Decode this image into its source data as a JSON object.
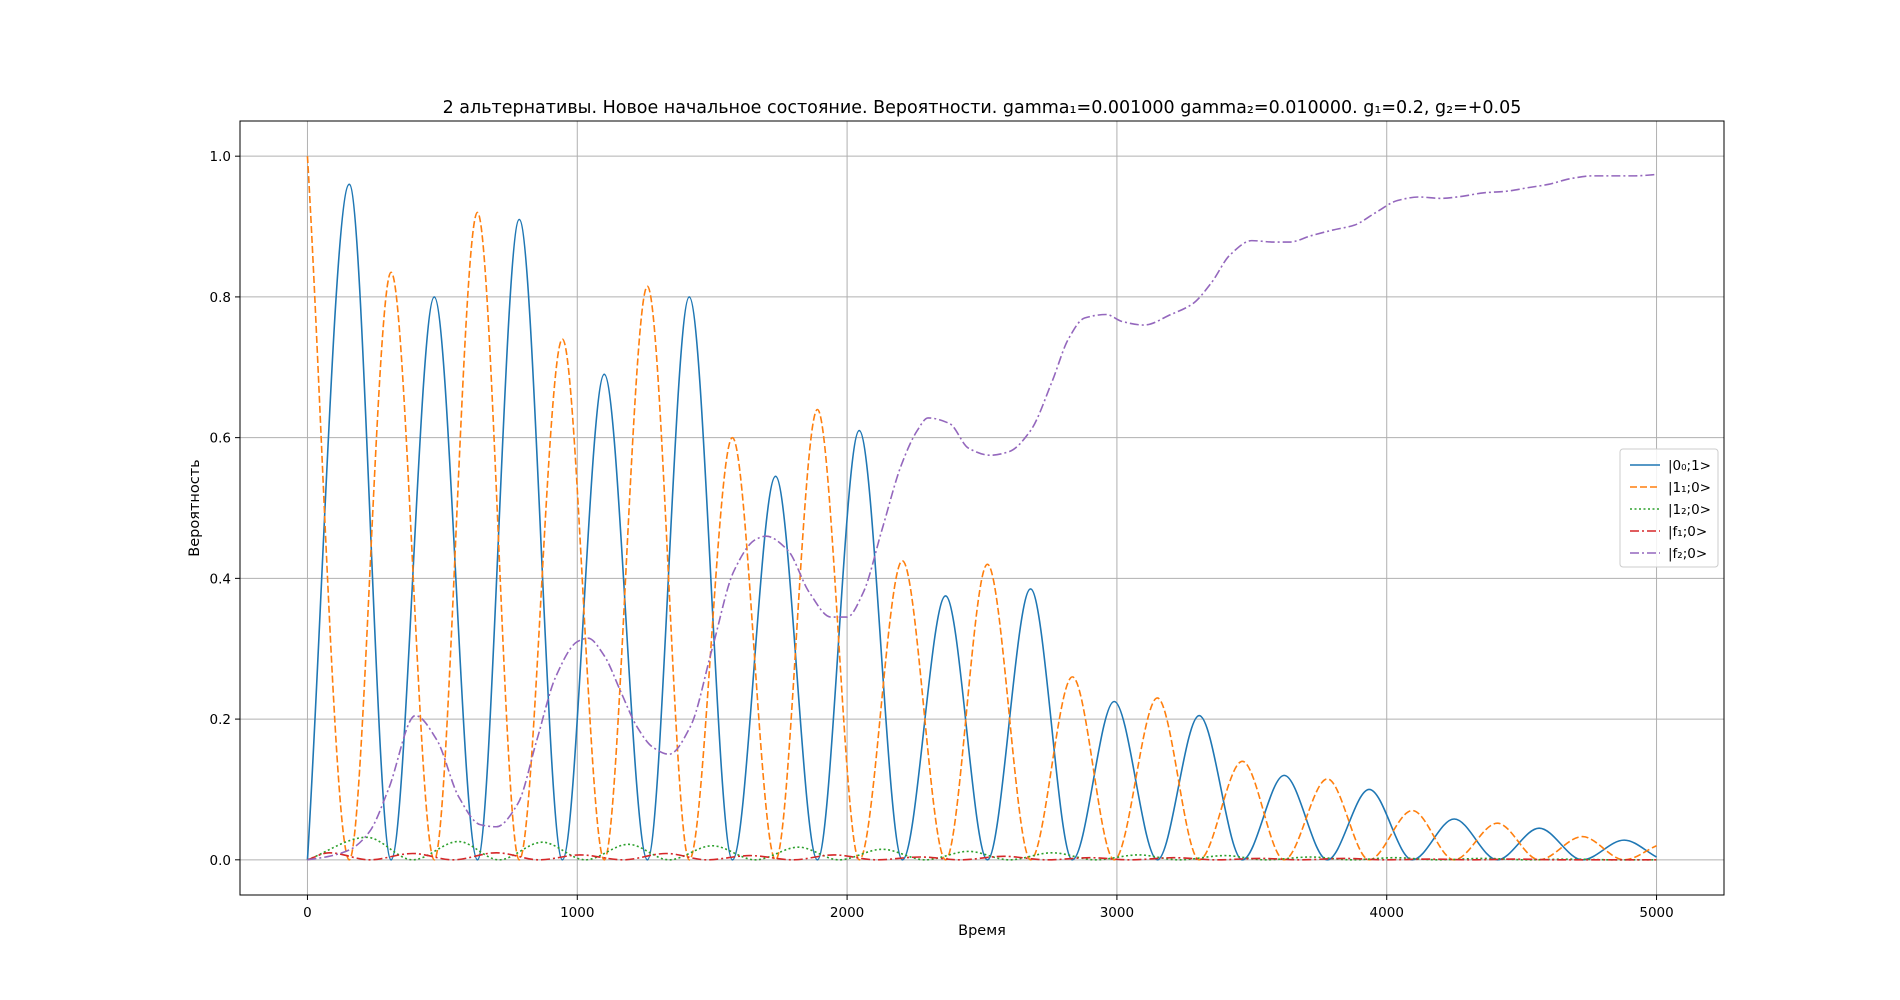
{
  "chart_data": {
    "type": "line",
    "title": "2 альтернативы. Новое начальное состояние. Вероятности.  gamma₁=0.001000 gamma₂=0.010000. g₁=0.2, g₂=+0.05",
    "xlabel": "Время",
    "ylabel": "Вероятность",
    "xlim": [
      -250,
      5250
    ],
    "ylim": [
      -0.05,
      1.05
    ],
    "xticks": [
      0,
      1000,
      2000,
      3000,
      4000,
      5000
    ],
    "xtick_labels": [
      "0",
      "1000",
      "2000",
      "3000",
      "4000",
      "5000"
    ],
    "yticks": [
      0.0,
      0.2,
      0.4,
      0.6,
      0.8,
      1.0
    ],
    "ytick_labels": [
      "0.0",
      "0.2",
      "0.4",
      "0.6",
      "0.8",
      "1.0"
    ],
    "grid": true,
    "legend_position": "center-right",
    "series": [
      {
        "name": "|0₀;1>",
        "color": "#1f77b4",
        "dash": "solid",
        "x": [
          0,
          155,
          310,
          470,
          630,
          785,
          945,
          1100,
          1260,
          1415,
          1575,
          1735,
          1890,
          2045,
          2205,
          2365,
          2520,
          2680,
          2835,
          2990,
          3150,
          3305,
          3465,
          3620,
          3780,
          3935,
          4095,
          4250,
          4410,
          4565,
          4725,
          4880,
          5000
        ],
        "y": [
          0.0,
          0.96,
          0.0,
          0.8,
          0.0,
          0.91,
          0.0,
          0.69,
          0.0,
          0.8,
          0.0,
          0.545,
          0.0,
          0.61,
          0.0,
          0.375,
          0.0,
          0.385,
          0.0,
          0.225,
          0.0,
          0.205,
          0.0,
          0.12,
          0.0,
          0.1,
          0.0,
          0.058,
          0.0,
          0.045,
          0.0,
          0.028,
          0.004
        ]
      },
      {
        "name": "|1₁;0>",
        "color": "#ff7f0e",
        "dash": "dashed",
        "x": [
          0,
          155,
          310,
          470,
          630,
          785,
          945,
          1100,
          1260,
          1415,
          1575,
          1735,
          1890,
          2045,
          2205,
          2365,
          2520,
          2680,
          2835,
          2990,
          3150,
          3305,
          3465,
          3620,
          3780,
          3935,
          4095,
          4250,
          4410,
          4565,
          4725,
          4880,
          5000
        ],
        "y": [
          1.0,
          0.0,
          0.835,
          0.0,
          0.92,
          0.0,
          0.74,
          0.0,
          0.815,
          0.0,
          0.6,
          0.0,
          0.64,
          0.0,
          0.425,
          0.0,
          0.42,
          0.0,
          0.26,
          0.0,
          0.23,
          0.0,
          0.14,
          0.0,
          0.115,
          0.0,
          0.07,
          0.0,
          0.052,
          0.0,
          0.033,
          0.0,
          0.02
        ]
      },
      {
        "name": "|1₂;0>",
        "color": "#2ca02c",
        "dash": "dotted",
        "x": [
          0,
          220,
          390,
          560,
          710,
          870,
          1030,
          1190,
          1340,
          1500,
          1660,
          1820,
          1970,
          2130,
          2290,
          2450,
          2600,
          2760,
          2920,
          3080,
          3230,
          3400,
          3550,
          3720,
          3870,
          4030,
          4190,
          4360,
          4520,
          4680,
          4840,
          5000
        ],
        "y": [
          0.0,
          0.032,
          0.0,
          0.026,
          0.0,
          0.025,
          0.0,
          0.022,
          0.0,
          0.02,
          0.0,
          0.018,
          0.0,
          0.015,
          0.0,
          0.012,
          0.0,
          0.01,
          0.0,
          0.007,
          0.0,
          0.006,
          0.0,
          0.004,
          0.0,
          0.003,
          0.0,
          0.002,
          0.0,
          0.001,
          0.0,
          0.0
        ]
      },
      {
        "name": "|f₁;0>",
        "color": "#d62728",
        "dash": "dashdot",
        "x": [
          0,
          80,
          230,
          390,
          540,
          700,
          860,
          1010,
          1170,
          1330,
          1480,
          1640,
          1800,
          1950,
          2110,
          2270,
          2420,
          2580,
          2740,
          2900,
          3050,
          3210,
          3370,
          3530,
          3680,
          3840,
          4000,
          4160,
          4320,
          4480,
          4640,
          4800,
          5000
        ],
        "y": [
          0.0,
          0.01,
          0.0,
          0.009,
          0.0,
          0.01,
          0.0,
          0.007,
          0.0,
          0.009,
          0.0,
          0.006,
          0.0,
          0.007,
          0.0,
          0.004,
          0.0,
          0.005,
          0.0,
          0.003,
          0.0,
          0.003,
          0.0,
          0.002,
          0.0,
          0.002,
          0.0,
          0.001,
          0.0,
          0.001,
          0.0,
          0.0,
          0.0
        ]
      },
      {
        "name": "|f₂;0>",
        "color": "#9467bd",
        "dash": "dashdot",
        "x": [
          0,
          80,
          160,
          230,
          300,
          400,
          480,
          560,
          640,
          700,
          780,
          850,
          920,
          1000,
          1040,
          1100,
          1160,
          1220,
          1280,
          1340,
          1420,
          1500,
          1580,
          1660,
          1700,
          1780,
          1860,
          1940,
          2000,
          2060,
          2130,
          2200,
          2260,
          2300,
          2380,
          2450,
          2530,
          2600,
          2680,
          2760,
          2820,
          2880,
          2960,
          3020,
          3100,
          3200,
          3280,
          3350,
          3420,
          3500,
          3580,
          3640,
          3720,
          3800,
          3880,
          3960,
          4040,
          4120,
          4200,
          4280,
          4360,
          4440,
          4520,
          4600,
          4680,
          4760,
          4840,
          4920,
          5000
        ],
        "y": [
          0.0,
          0.005,
          0.015,
          0.04,
          0.1,
          0.205,
          0.17,
          0.09,
          0.05,
          0.047,
          0.08,
          0.17,
          0.26,
          0.31,
          0.315,
          0.29,
          0.24,
          0.19,
          0.16,
          0.15,
          0.19,
          0.3,
          0.41,
          0.455,
          0.46,
          0.44,
          0.38,
          0.345,
          0.345,
          0.38,
          0.47,
          0.56,
          0.61,
          0.628,
          0.62,
          0.585,
          0.575,
          0.58,
          0.61,
          0.68,
          0.74,
          0.77,
          0.775,
          0.765,
          0.76,
          0.775,
          0.79,
          0.82,
          0.86,
          0.88,
          0.878,
          0.878,
          0.887,
          0.895,
          0.902,
          0.92,
          0.937,
          0.942,
          0.94,
          0.943,
          0.948,
          0.95,
          0.955,
          0.96,
          0.968,
          0.972,
          0.972,
          0.972,
          0.974
        ]
      }
    ]
  }
}
